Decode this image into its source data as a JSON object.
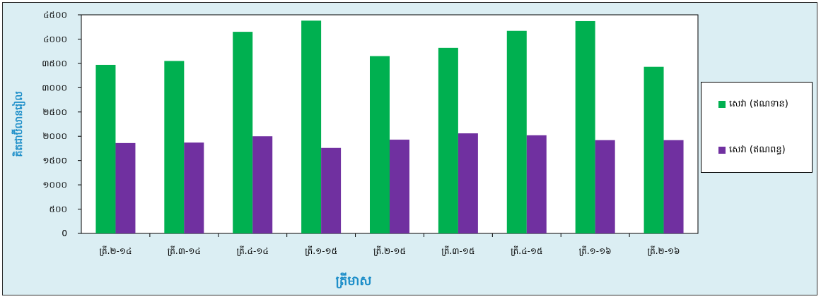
{
  "chart_data": {
    "type": "bar",
    "title": "",
    "xlabel": "ត្រីមាស",
    "ylabel": "គិតជាប៊ីលានរៀល",
    "categories": [
      "ត្រី.២-១៤",
      "ត្រី.៣-១៤",
      "ត្រី.៤-១៤",
      "ត្រី.១-១៥",
      "ត្រី.២-១៥",
      "ត្រី.៣-១៥",
      "ត្រី.៤-១៥",
      "ត្រី.១-១៦",
      "ត្រី.២-១៦"
    ],
    "series": [
      {
        "name": "សេវា (ឥណទាន)",
        "color": "#00b050",
        "values": [
          3470,
          3550,
          4150,
          4380,
          3650,
          3820,
          4170,
          4370,
          3430
        ]
      },
      {
        "name": "សេវា (ឥណពន្ធ)",
        "color": "#7030a0",
        "values": [
          1860,
          1870,
          2000,
          1760,
          1930,
          2060,
          2020,
          1920,
          1920
        ]
      }
    ],
    "ylim": [
      0,
      4500
    ],
    "yticks": [
      "0",
      "៥០០",
      "១០០០",
      "១៥០០",
      "២០០០",
      "២៥០០",
      "៣០០០",
      "៣៥០០",
      "៤០០០",
      "៤៥០០"
    ],
    "grid": false,
    "legend_position": "right"
  }
}
